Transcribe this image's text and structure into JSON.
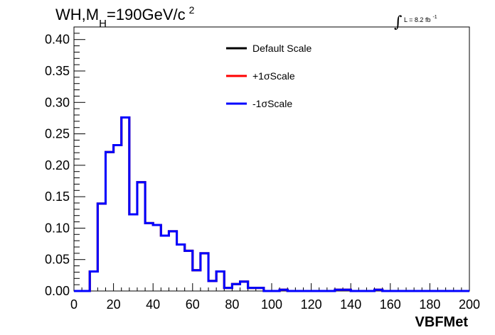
{
  "chart_data": {
    "type": "line",
    "title": "WH,M_H=190GeV/c^2",
    "title_parts": {
      "main": "WH,M",
      "sub": "H",
      "rest": "=190GeV/c",
      "sup": "2"
    },
    "luminosity": {
      "symbol": "∫",
      "label": "L = 8.2 fb",
      "sup": "-1"
    },
    "xlabel": "VBFMet",
    "ylabel": "",
    "xlim": [
      0,
      200
    ],
    "ylim": [
      0,
      0.42
    ],
    "x_ticks": [
      "0",
      "20",
      "40",
      "60",
      "80",
      "100",
      "120",
      "140",
      "160",
      "180",
      "200"
    ],
    "y_ticks": [
      "0.00",
      "0.05",
      "0.10",
      "0.15",
      "0.20",
      "0.25",
      "0.30",
      "0.35",
      "0.40"
    ],
    "grid": false,
    "legend_position": "top-center",
    "bin_edges": [
      0,
      4,
      8,
      12,
      16,
      20,
      24,
      28,
      32,
      36,
      40,
      44,
      48,
      52,
      56,
      60,
      64,
      68,
      72,
      76,
      80,
      84,
      88,
      92,
      96,
      100,
      104,
      108,
      112,
      116,
      120,
      124,
      128,
      132,
      136,
      140,
      144,
      148,
      152,
      156,
      160,
      164,
      168,
      172,
      176,
      180,
      184,
      188,
      192,
      196,
      200
    ],
    "series": [
      {
        "name": "Default Scale",
        "color": "#000000",
        "values": [
          0,
          0,
          0.031,
          0.139,
          0.221,
          0.232,
          0.276,
          0.122,
          0.173,
          0.108,
          0.105,
          0.088,
          0.095,
          0.074,
          0.064,
          0.033,
          0.06,
          0.016,
          0.031,
          0.005,
          0.011,
          0.015,
          0.005,
          0.005,
          0,
          0,
          0.002,
          0,
          0,
          0,
          0,
          0,
          0,
          0.002,
          0.002,
          0,
          0,
          0,
          0.002,
          0,
          0,
          0,
          0,
          0,
          0,
          0,
          0,
          0,
          0,
          0
        ]
      },
      {
        "name": "+1σScale",
        "color": "#ff0000",
        "values": [
          0,
          0,
          0.031,
          0.139,
          0.221,
          0.232,
          0.276,
          0.122,
          0.173,
          0.108,
          0.105,
          0.088,
          0.095,
          0.074,
          0.064,
          0.033,
          0.06,
          0.016,
          0.031,
          0.005,
          0.011,
          0.015,
          0.005,
          0.005,
          0,
          0,
          0.002,
          0,
          0,
          0,
          0,
          0,
          0,
          0.002,
          0.002,
          0,
          0,
          0,
          0.002,
          0,
          0,
          0,
          0,
          0,
          0,
          0,
          0,
          0,
          0,
          0
        ]
      },
      {
        "name": "-1σScale",
        "color": "#0000ff",
        "values": [
          0,
          0,
          0.031,
          0.139,
          0.221,
          0.232,
          0.276,
          0.122,
          0.173,
          0.108,
          0.105,
          0.088,
          0.095,
          0.074,
          0.064,
          0.033,
          0.06,
          0.016,
          0.031,
          0.005,
          0.011,
          0.015,
          0.005,
          0.005,
          0,
          0,
          0.002,
          0,
          0,
          0,
          0,
          0,
          0,
          0.002,
          0.002,
          0,
          0,
          0,
          0.002,
          0,
          0,
          0,
          0,
          0,
          0,
          0,
          0,
          0,
          0,
          0
        ]
      }
    ]
  }
}
